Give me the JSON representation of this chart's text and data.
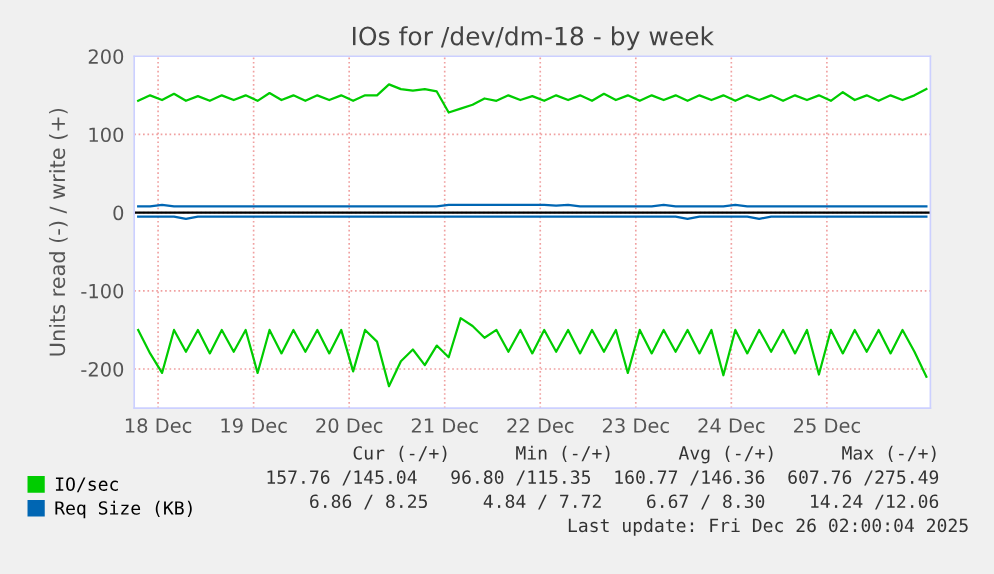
{
  "chart_data": {
    "type": "line",
    "title": "IOs for /dev/dm-18 - by week",
    "ylabel": "Units read (-) / write (+)",
    "x": [
      "2025-12-17T19:00",
      "2025-12-17T22:00",
      "2025-12-18T01:00",
      "2025-12-18T04:00",
      "2025-12-18T07:00",
      "2025-12-18T10:00",
      "2025-12-18T13:00",
      "2025-12-18T16:00",
      "2025-12-18T19:00",
      "2025-12-18T22:00",
      "2025-12-19T01:00",
      "2025-12-19T04:00",
      "2025-12-19T07:00",
      "2025-12-19T10:00",
      "2025-12-19T13:00",
      "2025-12-19T16:00",
      "2025-12-19T19:00",
      "2025-12-19T22:00",
      "2025-12-20T01:00",
      "2025-12-20T04:00",
      "2025-12-20T07:00",
      "2025-12-20T10:00",
      "2025-12-20T13:00",
      "2025-12-20T16:00",
      "2025-12-20T19:00",
      "2025-12-20T22:00",
      "2025-12-21T01:00",
      "2025-12-21T04:00",
      "2025-12-21T07:00",
      "2025-12-21T10:00",
      "2025-12-21T13:00",
      "2025-12-21T16:00",
      "2025-12-21T19:00",
      "2025-12-21T22:00",
      "2025-12-22T01:00",
      "2025-12-22T04:00",
      "2025-12-22T07:00",
      "2025-12-22T10:00",
      "2025-12-22T13:00",
      "2025-12-22T16:00",
      "2025-12-22T19:00",
      "2025-12-22T22:00",
      "2025-12-23T01:00",
      "2025-12-23T04:00",
      "2025-12-23T07:00",
      "2025-12-23T10:00",
      "2025-12-23T13:00",
      "2025-12-23T16:00",
      "2025-12-23T19:00",
      "2025-12-23T22:00",
      "2025-12-24T01:00",
      "2025-12-24T04:00",
      "2025-12-24T07:00",
      "2025-12-24T10:00",
      "2025-12-24T13:00",
      "2025-12-24T16:00",
      "2025-12-24T19:00",
      "2025-12-24T22:00",
      "2025-12-25T01:00",
      "2025-12-25T04:00",
      "2025-12-25T07:00",
      "2025-12-25T10:00",
      "2025-12-25T13:00",
      "2025-12-25T16:00",
      "2025-12-25T19:00",
      "2025-12-25T22:00",
      "2025-12-26T01:00"
    ],
    "series": [
      {
        "name": "IO/sec",
        "color": "#00cc00",
        "values": [
          143,
          150,
          144,
          152,
          143,
          149,
          143,
          150,
          144,
          150,
          143,
          153,
          144,
          150,
          143,
          150,
          144,
          150,
          143,
          150,
          150,
          164,
          158,
          156,
          158,
          155,
          128,
          133,
          138,
          146,
          143,
          150,
          144,
          149,
          143,
          150,
          144,
          150,
          143,
          152,
          144,
          150,
          143,
          150,
          144,
          150,
          143,
          150,
          144,
          150,
          143,
          150,
          144,
          150,
          143,
          150,
          144,
          150,
          143,
          154,
          144,
          150,
          143,
          150,
          144,
          150,
          158
        ]
      },
      {
        "color": "#00cc00",
        "values": [
          -150,
          -180,
          -205,
          -150,
          -178,
          -150,
          -180,
          -150,
          -178,
          -150,
          -205,
          -150,
          -180,
          -150,
          -178,
          -150,
          -180,
          -150,
          -203,
          -150,
          -165,
          -222,
          -190,
          -175,
          -195,
          -170,
          -185,
          -135,
          -145,
          -160,
          -150,
          -178,
          -150,
          -180,
          -150,
          -178,
          -150,
          -180,
          -150,
          -178,
          -150,
          -205,
          -150,
          -180,
          -150,
          -178,
          -150,
          -180,
          -150,
          -208,
          -150,
          -180,
          -150,
          -178,
          -150,
          -180,
          -150,
          -207,
          -150,
          -180,
          -150,
          -178,
          -150,
          -180,
          -150,
          -178,
          -210
        ]
      },
      {
        "name": "Req Size (KB)",
        "color": "#0066b3",
        "values": [
          8,
          8,
          10,
          8,
          8,
          8,
          8,
          8,
          8,
          8,
          8,
          8,
          8,
          8,
          8,
          8,
          8,
          8,
          8,
          8,
          8,
          8,
          8,
          8,
          8,
          8,
          10,
          10,
          10,
          10,
          10,
          10,
          10,
          10,
          10,
          9,
          10,
          8,
          8,
          8,
          8,
          8,
          8,
          8,
          10,
          8,
          8,
          8,
          8,
          8,
          10,
          8,
          8,
          8,
          8,
          8,
          8,
          8,
          8,
          8,
          8,
          8,
          8,
          8,
          8,
          8,
          8
        ]
      },
      {
        "color": "#0066b3",
        "values": [
          -5,
          -5,
          -5,
          -5,
          -8,
          -5,
          -5,
          -5,
          -5,
          -5,
          -5,
          -5,
          -5,
          -5,
          -5,
          -5,
          -5,
          -5,
          -5,
          -5,
          -5,
          -5,
          -5,
          -5,
          -5,
          -5,
          -5,
          -5,
          -5,
          -5,
          -5,
          -5,
          -5,
          -5,
          -5,
          -5,
          -5,
          -5,
          -5,
          -5,
          -5,
          -5,
          -5,
          -5,
          -5,
          -5,
          -8,
          -5,
          -5,
          -5,
          -5,
          -5,
          -8,
          -5,
          -5,
          -5,
          -5,
          -5,
          -5,
          -5,
          -5,
          -5,
          -5,
          -5,
          -5,
          -5,
          -5
        ]
      }
    ],
    "ylim": [
      -250,
      200
    ],
    "yticks": [
      -200,
      -100,
      0,
      100,
      200
    ],
    "xlim": [
      "2025-12-17T18:00",
      "2025-12-26T02:00"
    ],
    "xticks": [
      {
        "value": "2025-12-18",
        "label": "18 Dec"
      },
      {
        "value": "2025-12-19",
        "label": "19 Dec"
      },
      {
        "value": "2025-12-20",
        "label": "20 Dec"
      },
      {
        "value": "2025-12-21",
        "label": "21 Dec"
      },
      {
        "value": "2025-12-22",
        "label": "22 Dec"
      },
      {
        "value": "2025-12-23",
        "label": "23 Dec"
      },
      {
        "value": "2025-12-24",
        "label": "24 Dec"
      },
      {
        "value": "2025-12-25",
        "label": "25 Dec"
      }
    ],
    "ref_lines": [
      {
        "axis": "y",
        "value": 0,
        "color": "#000000"
      }
    ],
    "grid": true,
    "legend": "bottom",
    "marker": "none",
    "line_style": "solid",
    "annotations": [
      "Cur (-/+)      Min (-/+)      Avg (-/+)      Max (-/+)",
      "157.76 /145.04   96.80 /115.35  160.77 /146.36  607.76 /275.49",
      "  6.86 / 8.25     4.84 / 7.72    6.67 / 8.30    14.24 /12.06",
      "Last update: Fri Dec 26 02:00:04 2025"
    ]
  }
}
